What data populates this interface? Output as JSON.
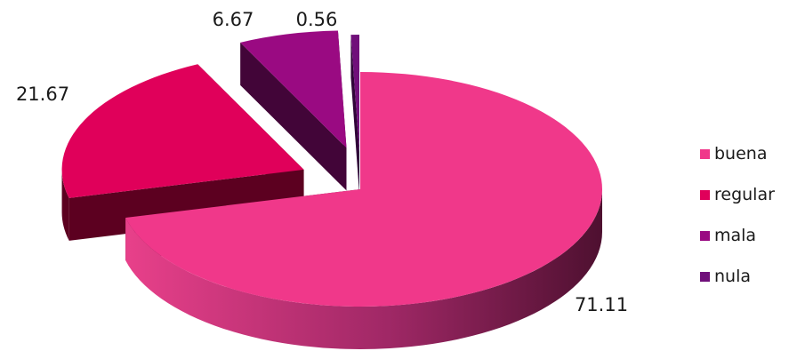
{
  "chart_data": {
    "type": "pie",
    "title": "",
    "style": "3d-exploded",
    "slices": [
      {
        "category": "buena",
        "value": 71.11,
        "label": "71.11",
        "color": "#f0388a",
        "side_color": "#5a1038"
      },
      {
        "category": "regular",
        "value": 21.67,
        "label": "21.67",
        "color": "#e0005a",
        "side_color": "#5c0020"
      },
      {
        "category": "mala",
        "value": 6.67,
        "label": "6.67",
        "color": "#9a0a82",
        "side_color": "#420538"
      },
      {
        "category": "nula",
        "value": 0.56,
        "label": "0.56",
        "color": "#70107a",
        "side_color": "#300538"
      }
    ],
    "legend": {
      "position": "right",
      "entries": [
        "buena",
        "regular",
        "mala",
        "nula"
      ]
    },
    "grid": false
  }
}
